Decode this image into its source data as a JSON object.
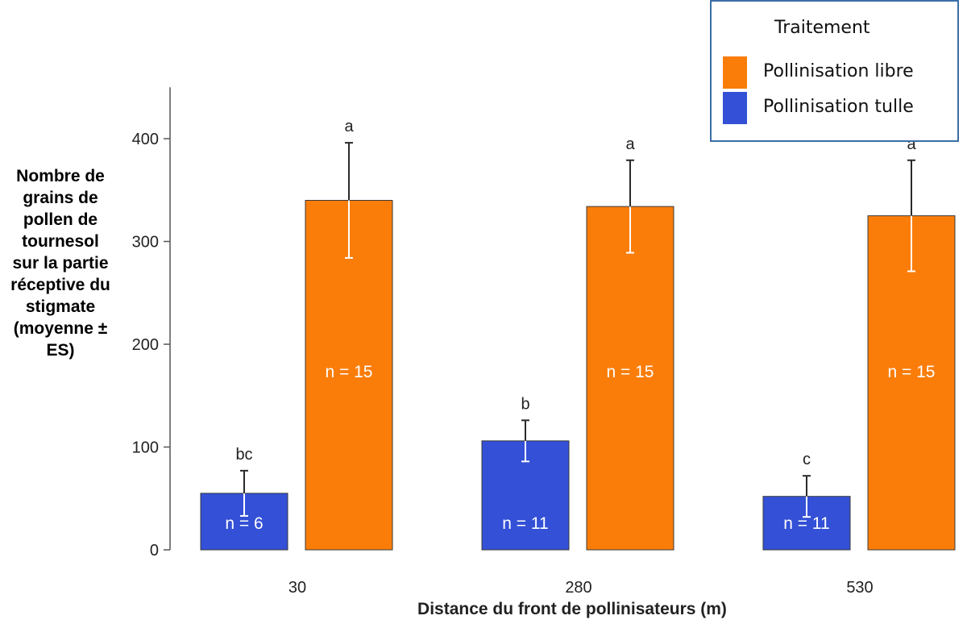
{
  "chart_data": {
    "type": "bar",
    "xlabel": "Distance du front de pollinisateurs (m)",
    "ylabel_lines": [
      "Nombre de",
      "grains de",
      "pollen de",
      "tournesol",
      "sur la partie",
      "réceptive du",
      "stigmate",
      "(moyenne ±",
      "ES)"
    ],
    "categories": [
      "30",
      "280",
      "530"
    ],
    "ylim": [
      0,
      450
    ],
    "yticks": [
      "0",
      "100",
      "200",
      "300",
      "400"
    ],
    "legend_title": "Traitement",
    "series": [
      {
        "name": "Pollinisation tulle",
        "color": "#3350d6",
        "values": [
          55,
          106,
          52
        ],
        "errors": [
          22,
          20,
          20
        ],
        "n_labels": [
          "n = 6",
          "n = 11",
          "n = 11"
        ],
        "letters": [
          "bc",
          "b",
          "c"
        ]
      },
      {
        "name": "Pollinisation libre",
        "color": "#fa7d0a",
        "values": [
          340,
          334,
          325
        ],
        "errors": [
          56,
          45,
          54
        ],
        "n_labels": [
          "n = 15",
          "n = 15",
          "n = 15"
        ],
        "letters": [
          "a",
          "a",
          "a"
        ]
      }
    ]
  }
}
